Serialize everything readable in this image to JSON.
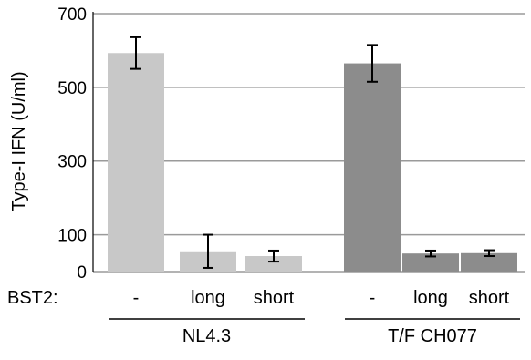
{
  "chart_data": {
    "type": "bar",
    "ylabel": "Type-I IFN (U/ml)",
    "ylim": [
      0,
      700
    ],
    "yticks": [
      0,
      100,
      300,
      500,
      700
    ],
    "row_label": "BST2:",
    "categories": [
      "-",
      "long",
      "short",
      "-",
      "long",
      "short"
    ],
    "groups": [
      {
        "name": "NL4.3",
        "color": "#c8c8c8",
        "bar_indices": [
          0,
          1,
          2
        ]
      },
      {
        "name": "T/F CH077",
        "color": "#8c8c8c",
        "bar_indices": [
          3,
          4,
          5
        ]
      }
    ],
    "series": [
      {
        "values": [
          593,
          55,
          42,
          565,
          49,
          50
        ],
        "errors": [
          43,
          45,
          15,
          50,
          8,
          8
        ]
      }
    ],
    "grid": true
  }
}
